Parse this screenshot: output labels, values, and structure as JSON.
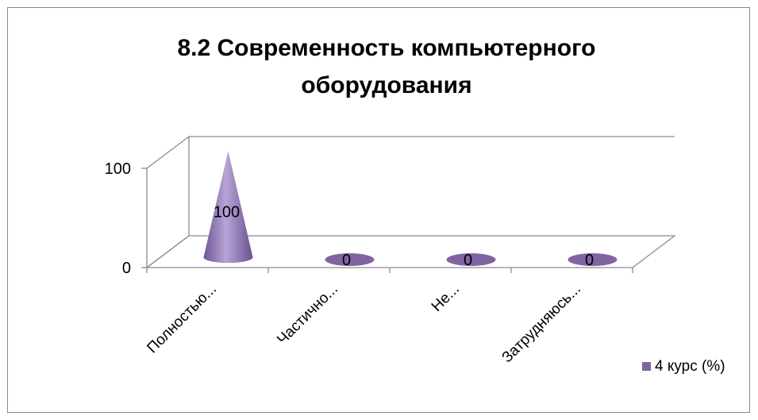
{
  "chart_data": {
    "type": "bar",
    "shape": "cone-3d",
    "title_lines": [
      "8.2 Современность компьютерного",
      "оборудования"
    ],
    "categories": [
      "Полностью...",
      "Частично...",
      "Не...",
      "Затрудняюсь..."
    ],
    "series": [
      {
        "name": "4 курс (%)",
        "values": [
          100,
          0,
          0,
          0
        ],
        "color": "#8064a2"
      }
    ],
    "data_labels": [
      "100",
      "0",
      "0",
      "0"
    ],
    "y_ticks": [
      0,
      100
    ],
    "y_tick_labels": [
      "0",
      "100"
    ],
    "ylim": [
      0,
      100
    ],
    "grid": true,
    "legend_position": "bottom-right",
    "xlabel": "",
    "ylabel": ""
  }
}
